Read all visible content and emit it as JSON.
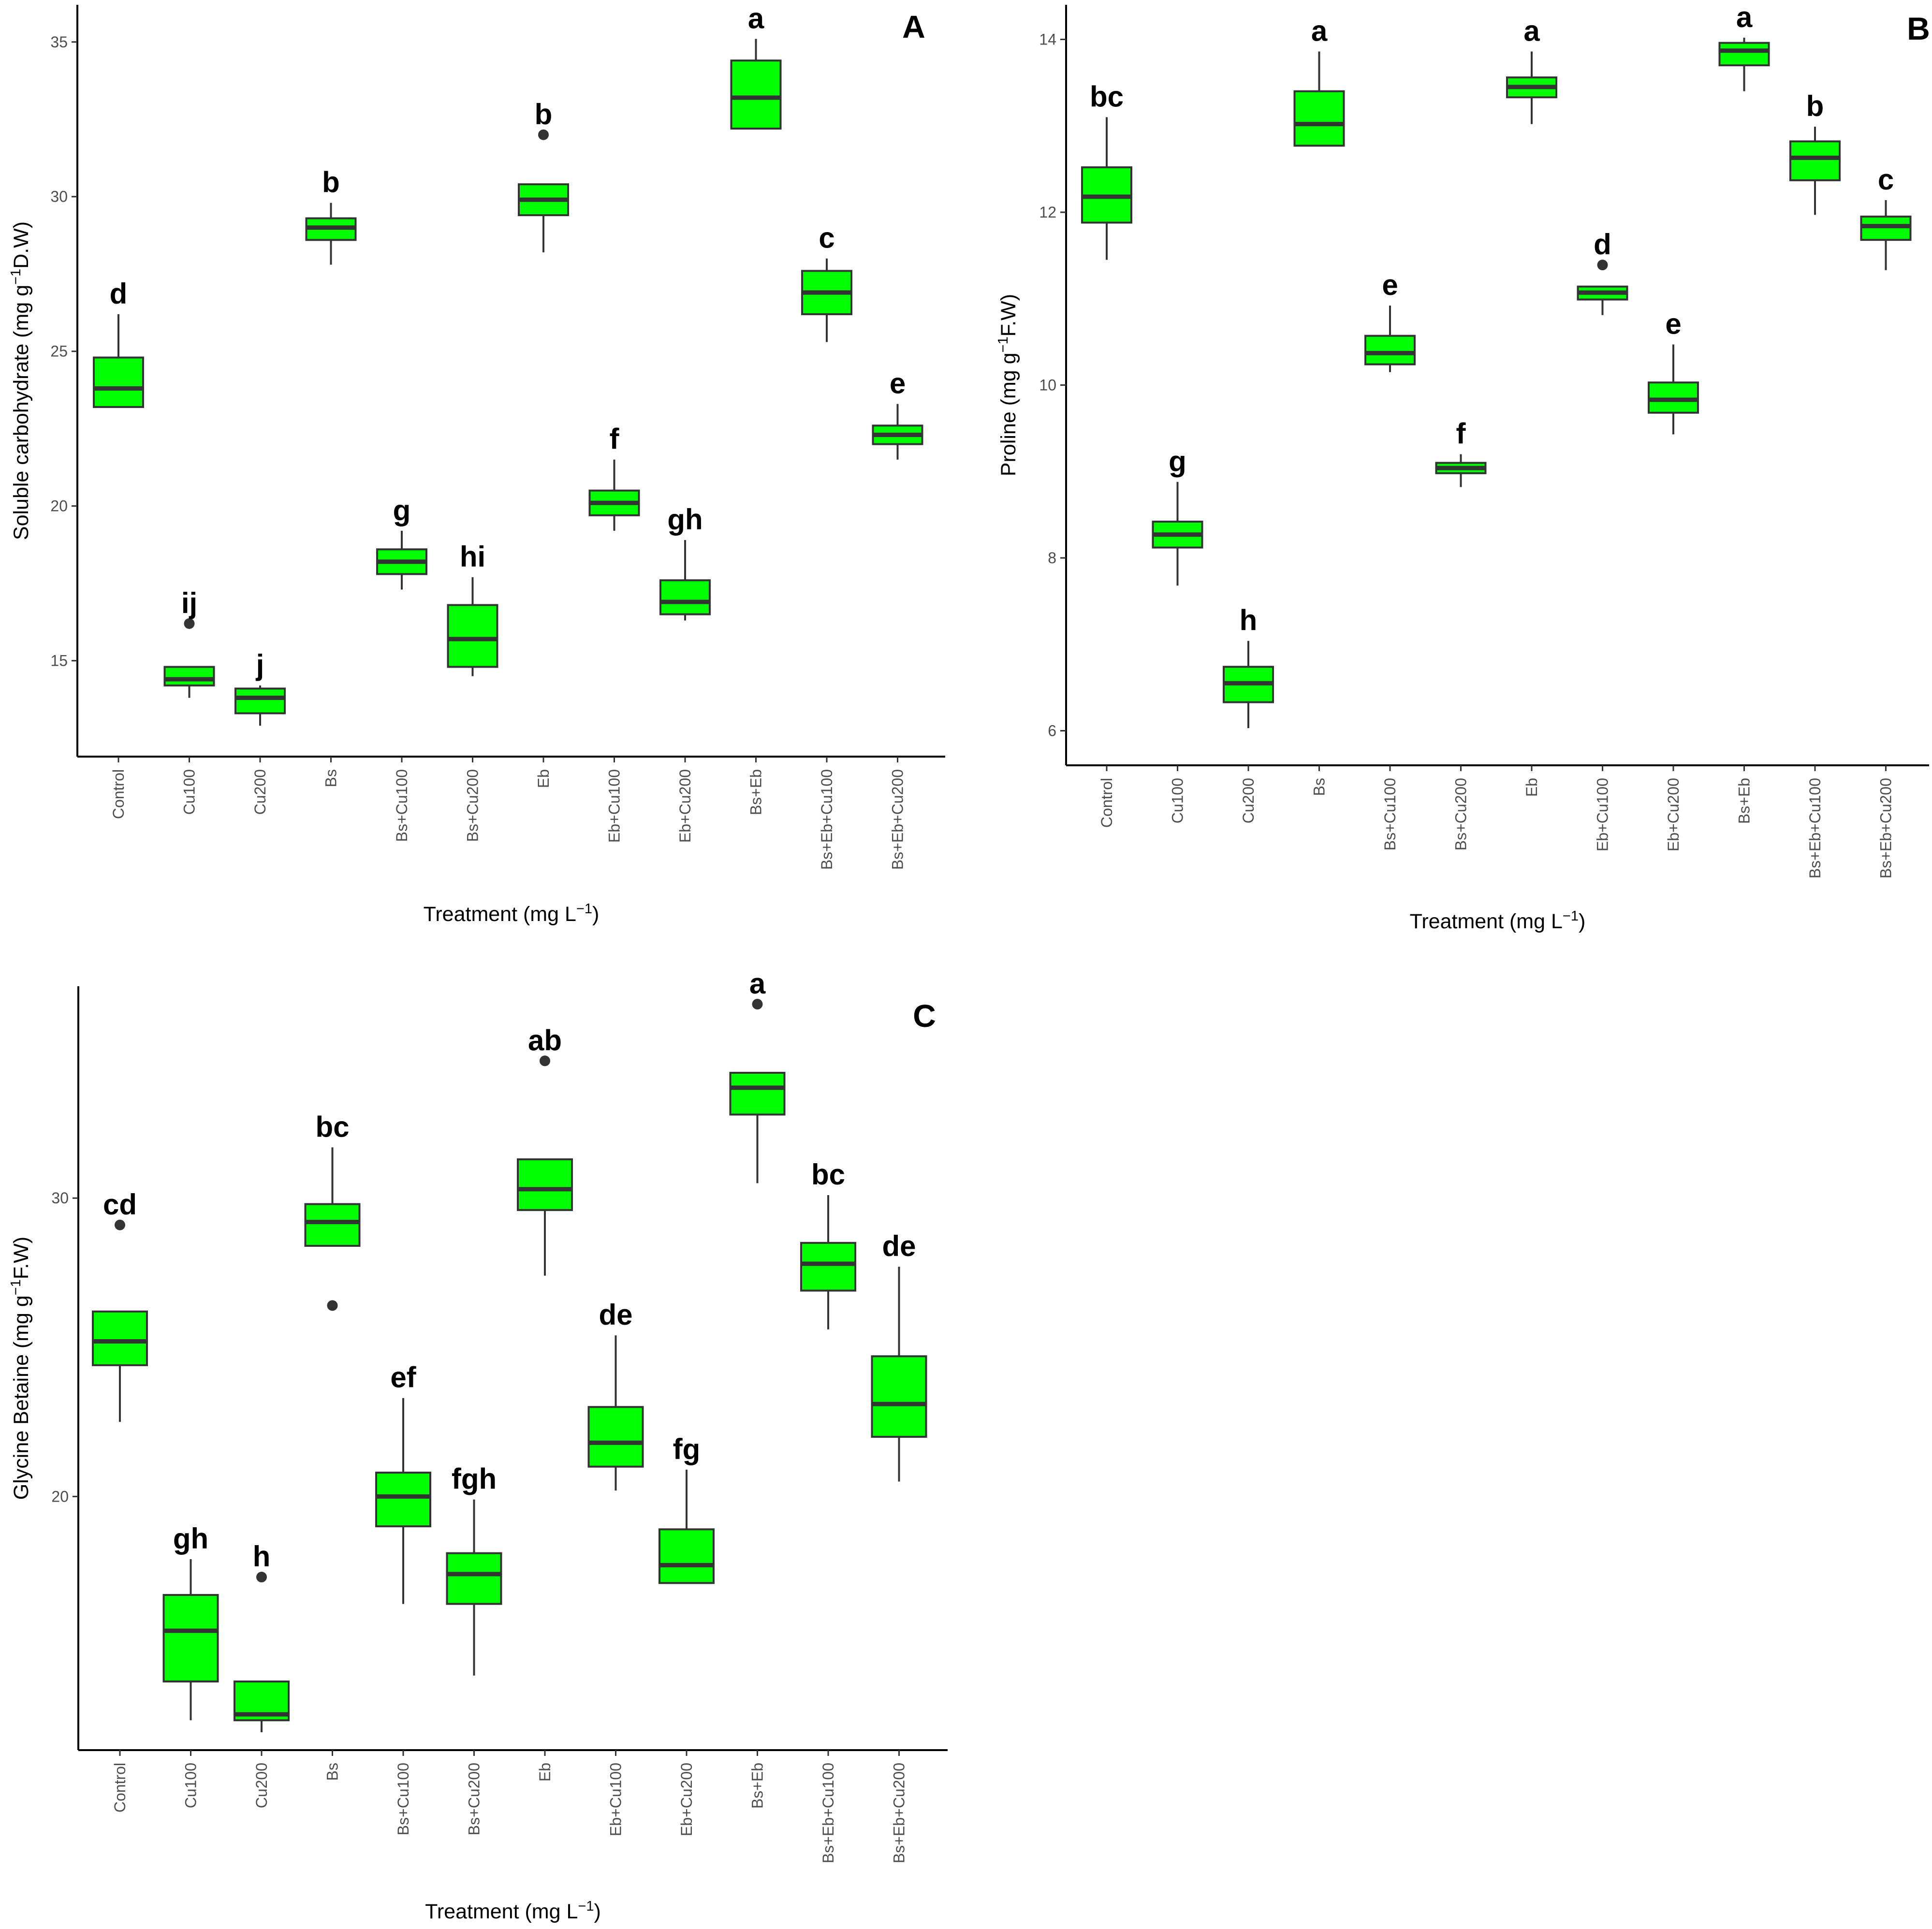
{
  "colors": {
    "box_fill": "#00ff00",
    "box_stroke": "#333333",
    "axis": "#000000",
    "background": "#ffffff"
  },
  "chart_data": [
    {
      "type": "box",
      "panel_label": "A",
      "xlabel_main": "Treatment (mg L",
      "xlabel_sup": "−1",
      "xlabel_end": ")",
      "ylabel_main": "Soluble carbohydrate (mg g",
      "ylabel_sup": "−1",
      "ylabel_end": "D.W)",
      "ylim": [
        11.9,
        36.2
      ],
      "yticks": [
        15,
        20,
        25,
        30,
        35
      ],
      "categories": [
        "Control",
        "Cu100",
        "Cu200",
        "Bs",
        "Bs+Cu100",
        "Bs+Cu200",
        "Eb",
        "Eb+Cu100",
        "Eb+Cu200",
        "Bs+Eb",
        "Bs+Eb+Cu100",
        "Bs+Eb+Cu200"
      ],
      "boxes": [
        {
          "min": 23.2,
          "q1": 23.2,
          "median": 23.8,
          "q3": 24.8,
          "max": 26.2,
          "outliers": [],
          "letter": "d"
        },
        {
          "min": 13.8,
          "q1": 14.2,
          "median": 14.4,
          "q3": 14.8,
          "max": 14.8,
          "outliers": [
            16.2
          ],
          "letter": "ij"
        },
        {
          "min": 12.9,
          "q1": 13.3,
          "median": 13.8,
          "q3": 14.1,
          "max": 14.2,
          "outliers": [],
          "letter": "j"
        },
        {
          "min": 27.8,
          "q1": 28.6,
          "median": 29.0,
          "q3": 29.3,
          "max": 29.8,
          "outliers": [],
          "letter": "b"
        },
        {
          "min": 17.3,
          "q1": 17.8,
          "median": 18.2,
          "q3": 18.6,
          "max": 19.2,
          "outliers": [],
          "letter": "g"
        },
        {
          "min": 14.5,
          "q1": 14.8,
          "median": 15.7,
          "q3": 16.8,
          "max": 17.7,
          "outliers": [],
          "letter": "hi"
        },
        {
          "min": 28.2,
          "q1": 29.4,
          "median": 29.9,
          "q3": 30.4,
          "max": 30.4,
          "outliers": [
            32.0
          ],
          "letter": "b"
        },
        {
          "min": 19.2,
          "q1": 19.7,
          "median": 20.1,
          "q3": 20.5,
          "max": 21.5,
          "outliers": [],
          "letter": "f"
        },
        {
          "min": 16.3,
          "q1": 16.5,
          "median": 16.9,
          "q3": 17.6,
          "max": 18.9,
          "outliers": [],
          "letter": "gh"
        },
        {
          "min": 32.2,
          "q1": 32.2,
          "median": 33.2,
          "q3": 34.4,
          "max": 35.1,
          "outliers": [],
          "letter": "a"
        },
        {
          "min": 25.3,
          "q1": 26.2,
          "median": 26.9,
          "q3": 27.6,
          "max": 28.0,
          "outliers": [],
          "letter": "c"
        },
        {
          "min": 21.5,
          "q1": 22.0,
          "median": 22.3,
          "q3": 22.6,
          "max": 23.3,
          "outliers": [],
          "letter": "e"
        }
      ]
    },
    {
      "type": "box",
      "panel_label": "B",
      "xlabel_main": "Treatment (mg L",
      "xlabel_sup": "−1",
      "xlabel_end": ")",
      "ylabel_main": "Proline (mg g",
      "ylabel_sup": "−1",
      "ylabel_end": "F.W)",
      "ylim": [
        5.6,
        14.4
      ],
      "yticks": [
        6,
        8,
        10,
        12,
        14
      ],
      "categories": [
        "Control",
        "Cu100",
        "Cu200",
        "Bs",
        "Bs+Cu100",
        "Bs+Cu200",
        "Eb",
        "Eb+Cu100",
        "Eb+Cu200",
        "Bs+Eb",
        "Bs+Eb+Cu100",
        "Bs+Eb+Cu200"
      ],
      "boxes": [
        {
          "min": 11.45,
          "q1": 11.88,
          "median": 12.18,
          "q3": 12.52,
          "max": 13.1,
          "outliers": [],
          "letter": "bc"
        },
        {
          "min": 7.68,
          "q1": 8.12,
          "median": 8.27,
          "q3": 8.42,
          "max": 8.88,
          "outliers": [],
          "letter": "g"
        },
        {
          "min": 6.03,
          "q1": 6.33,
          "median": 6.55,
          "q3": 6.74,
          "max": 7.04,
          "outliers": [],
          "letter": "h"
        },
        {
          "min": 12.77,
          "q1": 12.77,
          "median": 13.02,
          "q3": 13.4,
          "max": 13.86,
          "outliers": [],
          "letter": "a"
        },
        {
          "min": 10.15,
          "q1": 10.24,
          "median": 10.37,
          "q3": 10.57,
          "max": 10.92,
          "outliers": [],
          "letter": "e"
        },
        {
          "min": 8.82,
          "q1": 8.98,
          "median": 9.04,
          "q3": 9.1,
          "max": 9.2,
          "outliers": [],
          "letter": "f"
        },
        {
          "min": 13.02,
          "q1": 13.33,
          "median": 13.45,
          "q3": 13.56,
          "max": 13.86,
          "outliers": [],
          "letter": "a"
        },
        {
          "min": 10.81,
          "q1": 10.99,
          "median": 11.07,
          "q3": 11.14,
          "max": 11.14,
          "outliers": [
            11.39
          ],
          "letter": "d"
        },
        {
          "min": 9.43,
          "q1": 9.68,
          "median": 9.83,
          "q3": 10.03,
          "max": 10.47,
          "outliers": [],
          "letter": "e"
        },
        {
          "min": 13.4,
          "q1": 13.7,
          "median": 13.87,
          "q3": 13.96,
          "max": 14.02,
          "outliers": [],
          "letter": "a"
        },
        {
          "min": 11.97,
          "q1": 12.37,
          "median": 12.63,
          "q3": 12.82,
          "max": 12.99,
          "outliers": [],
          "letter": "b"
        },
        {
          "min": 11.33,
          "q1": 11.68,
          "median": 11.84,
          "q3": 11.95,
          "max": 12.14,
          "outliers": [],
          "letter": "c"
        }
      ]
    },
    {
      "type": "box",
      "panel_label": "C",
      "xlabel_main": "Treatment (mg L",
      "xlabel_sup": "−1",
      "xlabel_end": ")",
      "ylabel_main": "Glycine Betaine (mg g",
      "ylabel_sup": "−1",
      "ylabel_end": "F.W)",
      "ylim": [
        11.5,
        37.1
      ],
      "yticks": [
        20,
        30
      ],
      "categories": [
        "Control",
        "Cu100",
        "Cu200",
        "Bs",
        "Bs+Cu100",
        "Bs+Cu200",
        "Eb",
        "Eb+Cu100",
        "Eb+Cu200",
        "Bs+Eb",
        "Bs+Eb+Cu100",
        "Bs+Eb+Cu200"
      ],
      "boxes": [
        {
          "min": 22.5,
          "q1": 24.4,
          "median": 25.2,
          "q3": 26.2,
          "max": 26.2,
          "outliers": [
            29.1
          ],
          "letter": "cd"
        },
        {
          "min": 12.5,
          "q1": 13.8,
          "median": 15.5,
          "q3": 16.7,
          "max": 17.9,
          "outliers": [],
          "letter": "gh"
        },
        {
          "min": 12.1,
          "q1": 12.5,
          "median": 12.7,
          "q3": 13.8,
          "max": 13.8,
          "outliers": [
            17.3
          ],
          "letter": "h"
        },
        {
          "min": 28.4,
          "q1": 28.4,
          "median": 29.2,
          "q3": 29.8,
          "max": 31.7,
          "outliers": [
            26.4
          ],
          "letter": "bc"
        },
        {
          "min": 16.4,
          "q1": 19.0,
          "median": 20.0,
          "q3": 20.8,
          "max": 23.3,
          "outliers": [],
          "letter": "ef"
        },
        {
          "min": 14.0,
          "q1": 16.4,
          "median": 17.4,
          "q3": 18.1,
          "max": 19.9,
          "outliers": [],
          "letter": "fgh"
        },
        {
          "min": 27.4,
          "q1": 29.6,
          "median": 30.3,
          "q3": 31.3,
          "max": 31.3,
          "outliers": [
            34.6
          ],
          "letter": "ab"
        },
        {
          "min": 20.2,
          "q1": 21.0,
          "median": 21.8,
          "q3": 23.0,
          "max": 25.4,
          "outliers": [],
          "letter": "de"
        },
        {
          "min": 17.1,
          "q1": 17.1,
          "median": 17.7,
          "q3": 18.9,
          "max": 20.9,
          "outliers": [],
          "letter": "fg"
        },
        {
          "min": 30.5,
          "q1": 32.8,
          "median": 33.7,
          "q3": 34.2,
          "max": 34.2,
          "outliers": [
            36.5
          ],
          "letter": "a"
        },
        {
          "min": 25.6,
          "q1": 26.9,
          "median": 27.8,
          "q3": 28.5,
          "max": 30.1,
          "outliers": [],
          "letter": "bc"
        },
        {
          "min": 20.5,
          "q1": 22.0,
          "median": 23.1,
          "q3": 24.7,
          "max": 27.7,
          "outliers": [],
          "letter": "de"
        }
      ]
    }
  ]
}
